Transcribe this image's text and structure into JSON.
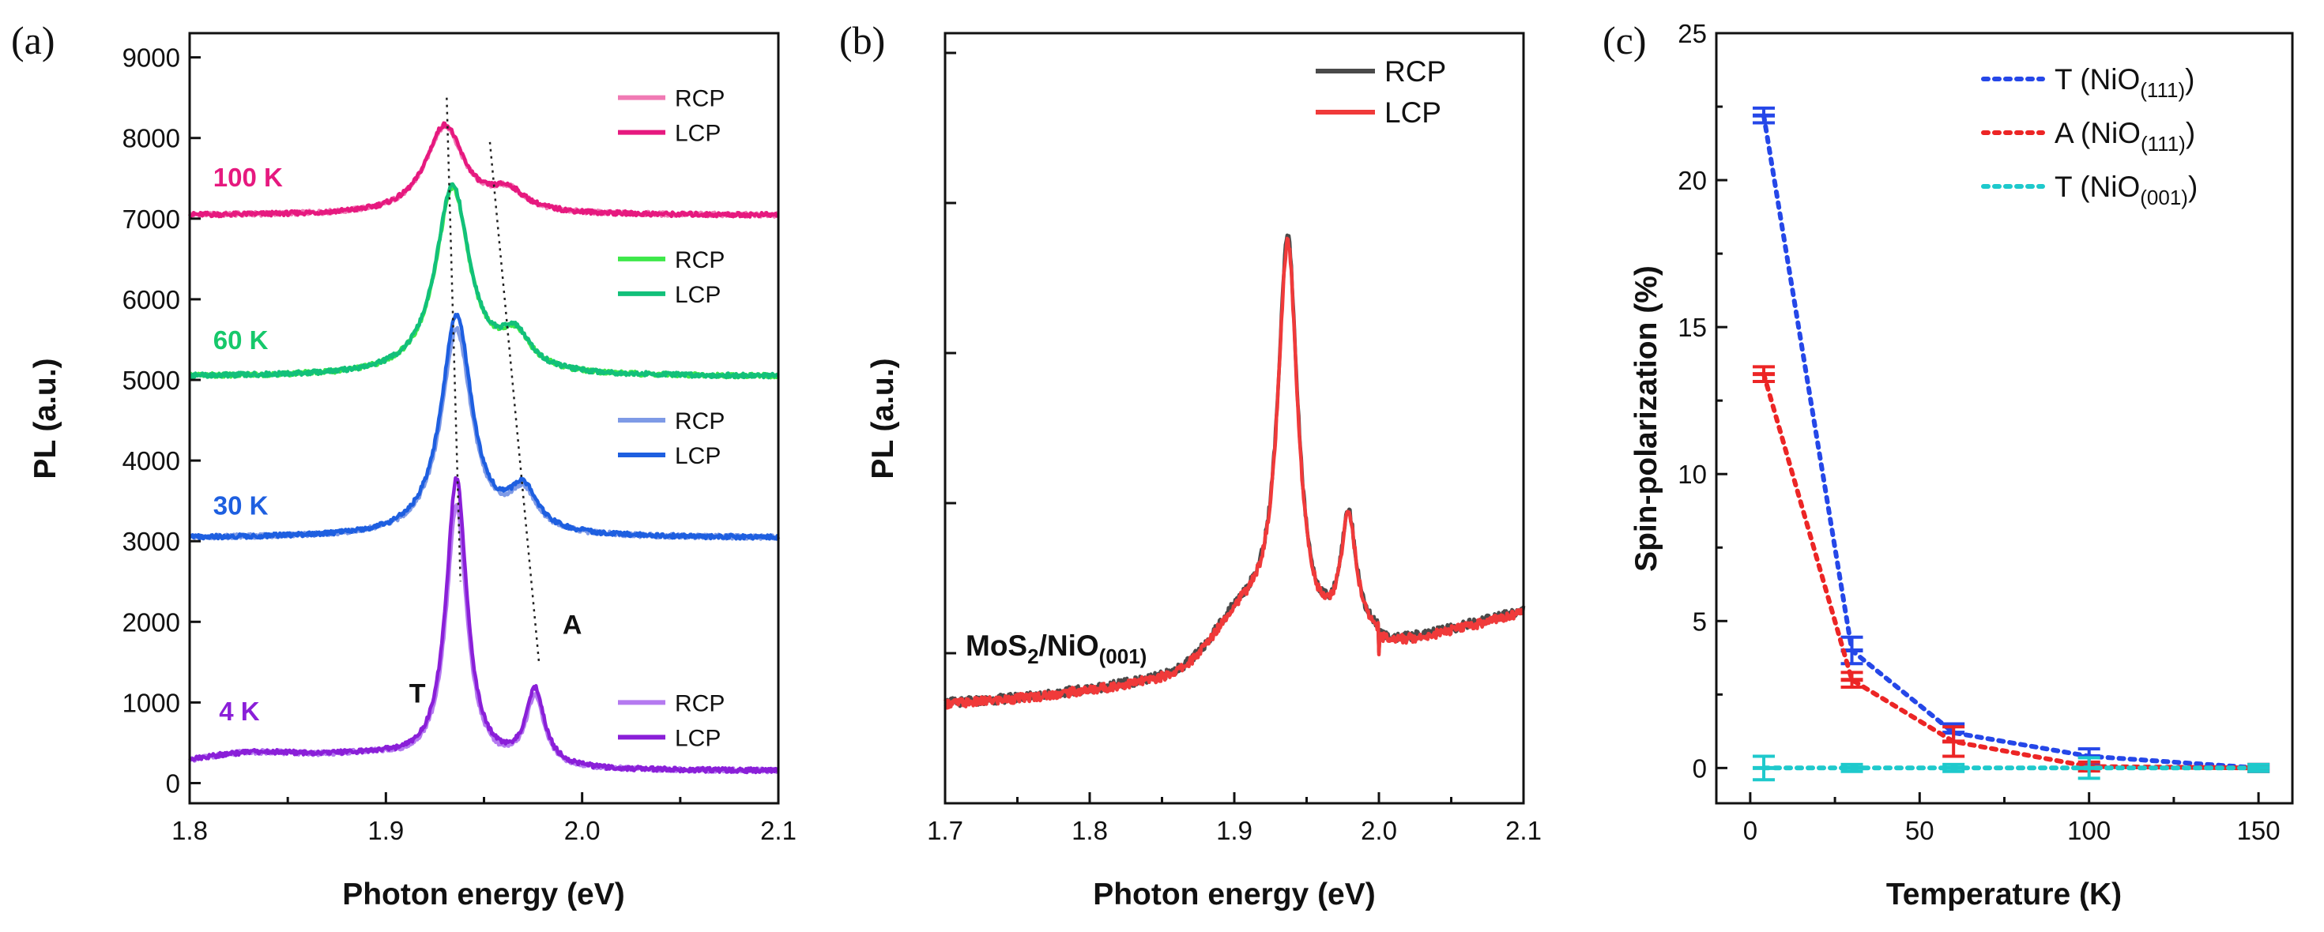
{
  "chart_data": [
    {
      "panel": "(a)",
      "type": "line",
      "xlabel": "Photon energy (eV)",
      "ylabel": "PL (a.u.)",
      "xlim": [
        1.8,
        2.1
      ],
      "ylim": [
        -250,
        9300
      ],
      "xticks": [
        "1.8",
        "1.9",
        "2.0",
        "2.1"
      ],
      "yticks": [
        "0",
        "1000",
        "2000",
        "3000",
        "4000",
        "5000",
        "6000",
        "7000",
        "8000",
        "9000"
      ],
      "peak_labels": [
        {
          "text": "T",
          "x": 1.936,
          "y": 1000
        },
        {
          "text": "A",
          "x": 1.986,
          "y": 1850
        }
      ],
      "guide_lines": [
        {
          "from": [
            1.931,
            8500
          ],
          "to": [
            1.938,
            2500
          ]
        },
        {
          "from": [
            1.953,
            7950
          ],
          "to": [
            1.978,
            1500
          ]
        }
      ],
      "groups": [
        {
          "label": "100 K",
          "color": "#e6197f",
          "label_x": 1.812,
          "label_y": 7400,
          "offset": 7000,
          "legend": [
            "RCP",
            "LCP"
          ],
          "rcp_color": "#f07ab4",
          "lcp_color": "#e6197f",
          "T_energy": 1.93,
          "T_height": 1100,
          "A_energy": 1.962,
          "A_height": 250,
          "width": 0.012,
          "bg": 40,
          "rcp_scale": 0.985
        },
        {
          "label": "60 K",
          "color": "#16c86b",
          "label_x": 1.812,
          "label_y": 5380,
          "offset": 5000,
          "legend": [
            "RCP",
            "LCP"
          ],
          "rcp_color": "#3ee84a",
          "lcp_color": "#12c07a",
          "T_energy": 1.934,
          "T_height": 2350,
          "A_energy": 1.966,
          "A_height": 420,
          "width": 0.0105,
          "bg": 40,
          "rcp_scale": 0.985
        },
        {
          "label": "30 K",
          "color": "#1e5fe0",
          "label_x": 1.812,
          "label_y": 3330,
          "offset": 3000,
          "legend": [
            "RCP",
            "LCP"
          ],
          "rcp_color": "#7e9ae6",
          "lcp_color": "#1e5fe0",
          "T_energy": 1.936,
          "T_height": 2750,
          "A_energy": 1.97,
          "A_height": 520,
          "width": 0.0095,
          "bg": 40,
          "rcp_scale": 0.93
        },
        {
          "label": "4 K",
          "color": "#8a1fd8",
          "label_x": 1.815,
          "label_y": 780,
          "offset": 0,
          "legend": [
            "RCP",
            "LCP"
          ],
          "rcp_color": "#b57af0",
          "lcp_color": "#8a1fd8",
          "T_energy": 1.936,
          "T_height": 3600,
          "A_energy": 1.976,
          "A_height": 950,
          "width": 0.0065,
          "bg": 150,
          "rcp_scale": 0.9
        }
      ]
    },
    {
      "panel": "(b)",
      "type": "line",
      "xlabel": "Photon energy (eV)",
      "ylabel": "PL (a.u.)",
      "xlim": [
        1.7,
        2.1
      ],
      "ylim": [
        0,
        1
      ],
      "xticks": [
        "1.7",
        "1.8",
        "1.9",
        "2.0",
        "2.1"
      ],
      "yticks_unlabeled": 5,
      "sample_label": {
        "main": "MoS",
        "sub1": "2",
        "mid": "/NiO",
        "sub2": "(001)"
      },
      "series": [
        {
          "name": "RCP",
          "color": "#4a4a4a"
        },
        {
          "name": "LCP",
          "color": "#f03a3a"
        }
      ],
      "peaks": {
        "T_energy": 1.937,
        "T_height": 0.53,
        "A_energy": 1.979,
        "A_height": 0.16,
        "width": 0.0085,
        "bg_start": 0.13
      }
    },
    {
      "panel": "(c)",
      "type": "line",
      "xlabel": "Temperature (K)",
      "ylabel": "Spin-polarization (%)",
      "xlim": [
        -10,
        160
      ],
      "ylim": [
        -1.2,
        25
      ],
      "xticks": [
        "0",
        "50",
        "100",
        "150"
      ],
      "yticks": [
        "0",
        "5",
        "10",
        "15",
        "20",
        "25"
      ],
      "x": [
        4,
        30,
        60,
        100,
        150
      ],
      "series": [
        {
          "name_main": "T (NiO",
          "name_sub": "(111)",
          "name_end": ")",
          "color": "#2547e8",
          "values": [
            22.2,
            4.0,
            1.2,
            0.4,
            0.0
          ],
          "errors": [
            0.25,
            0.45,
            0.3,
            0.25,
            0.1
          ]
        },
        {
          "name_main": "A (NiO",
          "name_sub": "(111)",
          "name_end": ")",
          "color": "#ec2525",
          "values": [
            13.4,
            3.0,
            0.9,
            0.05,
            0.0
          ],
          "errors": [
            0.25,
            0.25,
            0.5,
            0.15,
            0.1
          ]
        },
        {
          "name_main": "T (NiO",
          "name_sub": "(001)",
          "name_end": ")",
          "color": "#1ec9cc",
          "values": [
            0.0,
            0.0,
            0.0,
            0.0,
            0.0
          ],
          "errors": [
            0.4,
            0.1,
            0.1,
            0.35,
            0.1
          ]
        }
      ]
    }
  ]
}
